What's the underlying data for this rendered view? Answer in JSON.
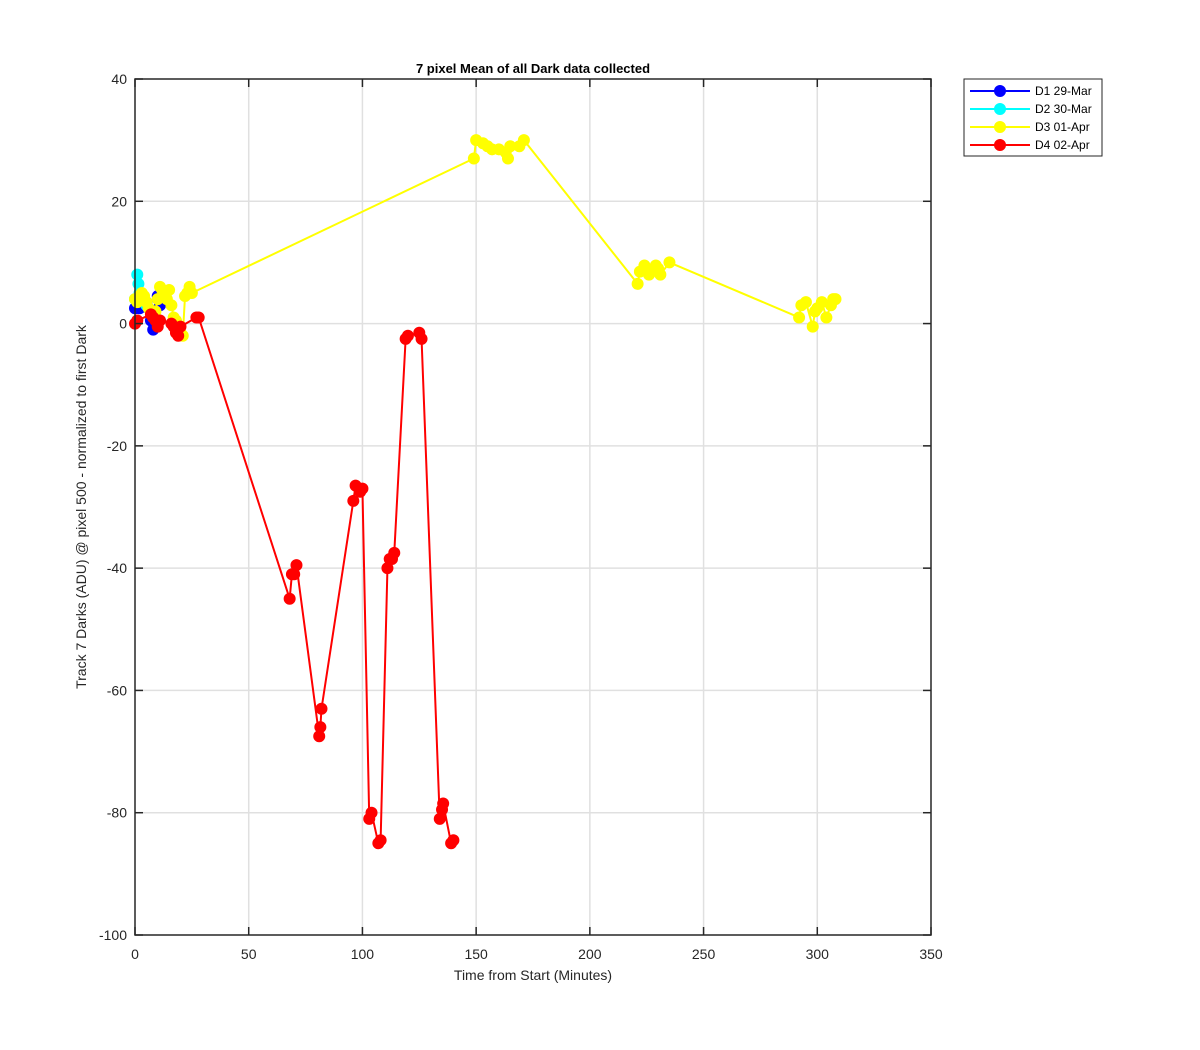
{
  "chart_data": {
    "type": "line",
    "title": "7 pixel Mean of all Dark data collected",
    "xlabel": "Time from Start (Minutes)",
    "ylabel": "Track 7 Darks (ADU) @ pixel 500 - normalized to first Dark",
    "xlim": [
      0,
      350
    ],
    "ylim": [
      -100,
      40
    ],
    "xticks": [
      0,
      50,
      100,
      150,
      200,
      250,
      300,
      350
    ],
    "yticks": [
      -100,
      -80,
      -60,
      -40,
      -20,
      0,
      20,
      40
    ],
    "grid": true,
    "legend_position": "outside top-right",
    "series": [
      {
        "name": "D1 29-Mar",
        "color": "#0000ff",
        "x": [
          0,
          1,
          2,
          3,
          4,
          5,
          6,
          7,
          8,
          9,
          10,
          11
        ],
        "y": [
          2.5,
          3,
          2.5,
          3,
          2.8,
          3.5,
          2.5,
          0.5,
          -1,
          -0.5,
          4.5,
          3
        ]
      },
      {
        "name": "D2 30-Mar",
        "color": "#00ffff",
        "x": [
          0,
          1,
          1.5,
          2,
          3,
          4,
          5
        ],
        "y": [
          4,
          8,
          6.5,
          5,
          4,
          3.5,
          3
        ]
      },
      {
        "name": "D3 01-Apr",
        "color": "#ffff00",
        "x": [
          0,
          1,
          2,
          3,
          4,
          5,
          6,
          7,
          8,
          9,
          10,
          11,
          12,
          13,
          14,
          15,
          16,
          17,
          18,
          19,
          20,
          21,
          22,
          23,
          24,
          25,
          149,
          150,
          153,
          155,
          157,
          160,
          163,
          164,
          165,
          169,
          171,
          221,
          222,
          224,
          225,
          226,
          227,
          229,
          230,
          231,
          235,
          292,
          293,
          295,
          298,
          299,
          300,
          302,
          304,
          306,
          307,
          308
        ],
        "y": [
          4,
          3.5,
          4.5,
          5,
          4.5,
          3.5,
          2.5,
          2,
          1,
          2,
          4,
          6,
          5.5,
          5,
          4,
          5.5,
          3,
          1,
          0.5,
          -1,
          -1.5,
          -2,
          4.5,
          5,
          6,
          5,
          27,
          30,
          29.5,
          29,
          28.5,
          28.5,
          28,
          27,
          29,
          29,
          30,
          6.5,
          8.5,
          9.5,
          9,
          8,
          8.5,
          9.5,
          9,
          8,
          10,
          1,
          3,
          3.5,
          -0.5,
          2,
          2.5,
          3.5,
          1,
          3,
          4,
          4
        ]
      },
      {
        "name": "D4 02-Apr",
        "color": "#ff0000",
        "x": [
          0,
          1,
          7,
          8,
          9,
          10,
          11,
          16,
          17,
          18,
          19,
          20,
          27,
          28,
          68,
          69,
          70,
          71,
          81,
          81.5,
          82,
          96,
          97,
          99,
          100,
          103,
          104,
          107,
          108,
          111,
          112,
          113,
          114,
          119,
          120,
          125,
          126,
          134,
          135,
          135.5,
          139,
          140
        ],
        "y": [
          0,
          0.5,
          1.5,
          1,
          0.5,
          -0.5,
          0.5,
          0,
          -0.5,
          -1.5,
          -2,
          -0.5,
          1,
          1,
          -45,
          -41,
          -41,
          -39.5,
          -67.5,
          -66,
          -63,
          -29,
          -26.5,
          -27.5,
          -27,
          -81,
          -80,
          -85,
          -84.5,
          -40,
          -38.5,
          -38.5,
          -37.5,
          -2.5,
          -2,
          -1.5,
          -2.5,
          -81,
          -79.5,
          -78.5,
          -85,
          -84.5
        ]
      }
    ]
  }
}
